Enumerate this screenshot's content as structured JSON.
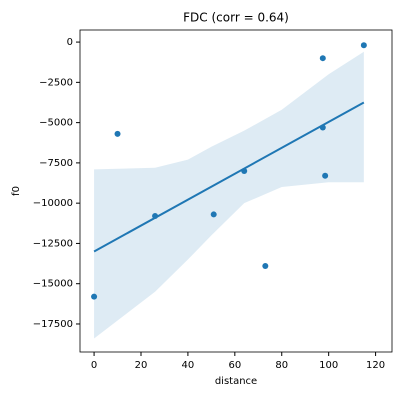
{
  "chart_data": {
    "type": "regplot",
    "title": "FDC (corr = 0.64)",
    "xlabel": "distance",
    "ylabel": "f0",
    "color": "#1f77b4",
    "x": [
      0,
      10,
      26,
      51,
      64,
      73,
      97.5,
      97.5,
      98.5,
      115
    ],
    "values": [
      -15800,
      -5700,
      -10800,
      -10700,
      -8000,
      -13900,
      -1000,
      -5300,
      -8300,
      -200
    ],
    "fit": {
      "x": [
        0,
        115
      ],
      "y": [
        -13000,
        -3750
      ]
    },
    "band": {
      "x": [
        0,
        26,
        40,
        50,
        64,
        80,
        100,
        115
      ],
      "upper": [
        -7900,
        -7800,
        -7300,
        -6500,
        -5500,
        -4200,
        -2000,
        -600
      ],
      "lower": [
        -18400,
        -15500,
        -13500,
        -12000,
        -10000,
        -9000,
        -8700,
        -8700
      ]
    },
    "xlim": [
      -6,
      127
    ],
    "ylim": [
      -19240,
      750
    ],
    "xticks": [
      0,
      20,
      40,
      60,
      80,
      100,
      120
    ],
    "yticks": [
      0,
      {
        "value": -2500,
        "label": "−2500"
      },
      {
        "value": -5000,
        "label": "−5000"
      },
      {
        "value": -7500,
        "label": "−7500"
      },
      {
        "value": -10000,
        "label": "−10000"
      },
      {
        "value": -12500,
        "label": "−12500"
      },
      {
        "value": -15000,
        "label": "−15000"
      },
      {
        "value": -17500,
        "label": "−17500"
      }
    ]
  }
}
